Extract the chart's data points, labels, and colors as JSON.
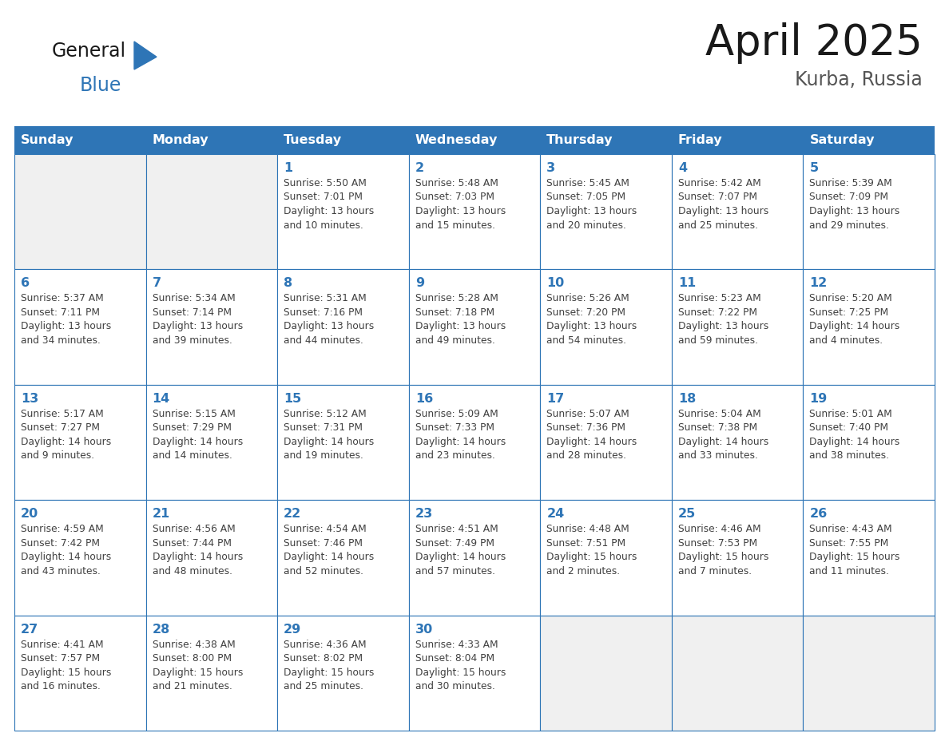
{
  "title": "April 2025",
  "subtitle": "Kurba, Russia",
  "header_color": "#2e75b6",
  "header_text_color": "#ffffff",
  "cell_bg_color": "#ffffff",
  "cell_empty_bg_color": "#f0f0f0",
  "cell_border_color": "#2e75b6",
  "day_number_color": "#2e75b6",
  "cell_text_color": "#404040",
  "background_color": "#ffffff",
  "logo_general_color": "#1a1a1a",
  "logo_blue_color": "#2e75b6",
  "logo_triangle_color": "#2e75b6",
  "days_of_week": [
    "Sunday",
    "Monday",
    "Tuesday",
    "Wednesday",
    "Thursday",
    "Friday",
    "Saturday"
  ],
  "weeks": [
    [
      {
        "day": "",
        "info": ""
      },
      {
        "day": "",
        "info": ""
      },
      {
        "day": "1",
        "info": "Sunrise: 5:50 AM\nSunset: 7:01 PM\nDaylight: 13 hours\nand 10 minutes."
      },
      {
        "day": "2",
        "info": "Sunrise: 5:48 AM\nSunset: 7:03 PM\nDaylight: 13 hours\nand 15 minutes."
      },
      {
        "day": "3",
        "info": "Sunrise: 5:45 AM\nSunset: 7:05 PM\nDaylight: 13 hours\nand 20 minutes."
      },
      {
        "day": "4",
        "info": "Sunrise: 5:42 AM\nSunset: 7:07 PM\nDaylight: 13 hours\nand 25 minutes."
      },
      {
        "day": "5",
        "info": "Sunrise: 5:39 AM\nSunset: 7:09 PM\nDaylight: 13 hours\nand 29 minutes."
      }
    ],
    [
      {
        "day": "6",
        "info": "Sunrise: 5:37 AM\nSunset: 7:11 PM\nDaylight: 13 hours\nand 34 minutes."
      },
      {
        "day": "7",
        "info": "Sunrise: 5:34 AM\nSunset: 7:14 PM\nDaylight: 13 hours\nand 39 minutes."
      },
      {
        "day": "8",
        "info": "Sunrise: 5:31 AM\nSunset: 7:16 PM\nDaylight: 13 hours\nand 44 minutes."
      },
      {
        "day": "9",
        "info": "Sunrise: 5:28 AM\nSunset: 7:18 PM\nDaylight: 13 hours\nand 49 minutes."
      },
      {
        "day": "10",
        "info": "Sunrise: 5:26 AM\nSunset: 7:20 PM\nDaylight: 13 hours\nand 54 minutes."
      },
      {
        "day": "11",
        "info": "Sunrise: 5:23 AM\nSunset: 7:22 PM\nDaylight: 13 hours\nand 59 minutes."
      },
      {
        "day": "12",
        "info": "Sunrise: 5:20 AM\nSunset: 7:25 PM\nDaylight: 14 hours\nand 4 minutes."
      }
    ],
    [
      {
        "day": "13",
        "info": "Sunrise: 5:17 AM\nSunset: 7:27 PM\nDaylight: 14 hours\nand 9 minutes."
      },
      {
        "day": "14",
        "info": "Sunrise: 5:15 AM\nSunset: 7:29 PM\nDaylight: 14 hours\nand 14 minutes."
      },
      {
        "day": "15",
        "info": "Sunrise: 5:12 AM\nSunset: 7:31 PM\nDaylight: 14 hours\nand 19 minutes."
      },
      {
        "day": "16",
        "info": "Sunrise: 5:09 AM\nSunset: 7:33 PM\nDaylight: 14 hours\nand 23 minutes."
      },
      {
        "day": "17",
        "info": "Sunrise: 5:07 AM\nSunset: 7:36 PM\nDaylight: 14 hours\nand 28 minutes."
      },
      {
        "day": "18",
        "info": "Sunrise: 5:04 AM\nSunset: 7:38 PM\nDaylight: 14 hours\nand 33 minutes."
      },
      {
        "day": "19",
        "info": "Sunrise: 5:01 AM\nSunset: 7:40 PM\nDaylight: 14 hours\nand 38 minutes."
      }
    ],
    [
      {
        "day": "20",
        "info": "Sunrise: 4:59 AM\nSunset: 7:42 PM\nDaylight: 14 hours\nand 43 minutes."
      },
      {
        "day": "21",
        "info": "Sunrise: 4:56 AM\nSunset: 7:44 PM\nDaylight: 14 hours\nand 48 minutes."
      },
      {
        "day": "22",
        "info": "Sunrise: 4:54 AM\nSunset: 7:46 PM\nDaylight: 14 hours\nand 52 minutes."
      },
      {
        "day": "23",
        "info": "Sunrise: 4:51 AM\nSunset: 7:49 PM\nDaylight: 14 hours\nand 57 minutes."
      },
      {
        "day": "24",
        "info": "Sunrise: 4:48 AM\nSunset: 7:51 PM\nDaylight: 15 hours\nand 2 minutes."
      },
      {
        "day": "25",
        "info": "Sunrise: 4:46 AM\nSunset: 7:53 PM\nDaylight: 15 hours\nand 7 minutes."
      },
      {
        "day": "26",
        "info": "Sunrise: 4:43 AM\nSunset: 7:55 PM\nDaylight: 15 hours\nand 11 minutes."
      }
    ],
    [
      {
        "day": "27",
        "info": "Sunrise: 4:41 AM\nSunset: 7:57 PM\nDaylight: 15 hours\nand 16 minutes."
      },
      {
        "day": "28",
        "info": "Sunrise: 4:38 AM\nSunset: 8:00 PM\nDaylight: 15 hours\nand 21 minutes."
      },
      {
        "day": "29",
        "info": "Sunrise: 4:36 AM\nSunset: 8:02 PM\nDaylight: 15 hours\nand 25 minutes."
      },
      {
        "day": "30",
        "info": "Sunrise: 4:33 AM\nSunset: 8:04 PM\nDaylight: 15 hours\nand 30 minutes."
      },
      {
        "day": "",
        "info": ""
      },
      {
        "day": "",
        "info": ""
      },
      {
        "day": "",
        "info": ""
      }
    ]
  ]
}
